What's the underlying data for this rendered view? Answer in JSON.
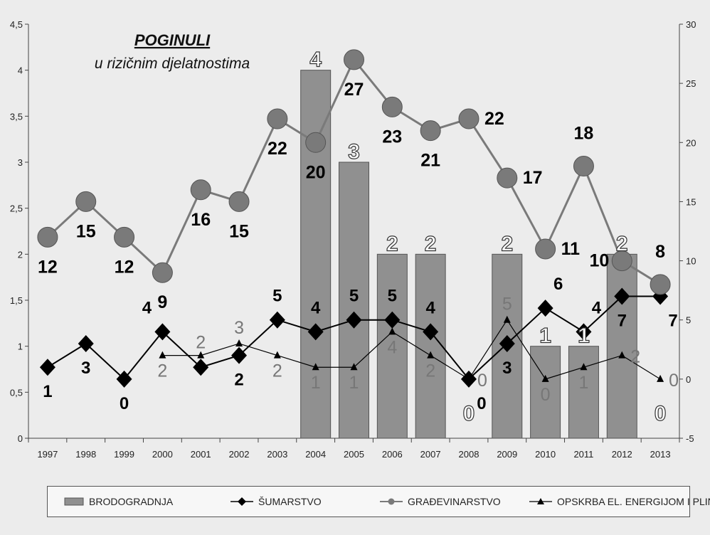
{
  "chart_data": {
    "type": "bar",
    "title": "POGINULI",
    "subtitle": "u rizičnim djelatnostima",
    "categories": [
      "1997",
      "1998",
      "1999",
      "2000",
      "2001",
      "2002",
      "2003",
      "2004",
      "2005",
      "2006",
      "2007",
      "2008",
      "2009",
      "2010",
      "2011",
      "2012",
      "2013"
    ],
    "y_left": {
      "range": [
        0,
        4.5
      ],
      "ticks": [
        "0",
        "0,5",
        "1",
        "1,5",
        "2",
        "2,5",
        "3",
        "3,5",
        "4",
        "4,5"
      ]
    },
    "y_right": {
      "range": [
        -5,
        30
      ],
      "ticks": [
        "-5",
        "0",
        "5",
        "10",
        "15",
        "20",
        "25",
        "30"
      ]
    },
    "grid": false,
    "legend_position": "bottom",
    "series": [
      {
        "name": "BRODOGRADNJA",
        "type": "bar",
        "axis": "left",
        "values": [
          null,
          null,
          null,
          null,
          null,
          null,
          null,
          4,
          3,
          2,
          2,
          0,
          2,
          1,
          1,
          2,
          0
        ],
        "labels": [
          "",
          "",
          "",
          "",
          "",
          "",
          "",
          "4",
          "3",
          "2",
          "2",
          "0",
          "2",
          "1",
          "1",
          "2",
          "0"
        ],
        "color": "#909090"
      },
      {
        "name": "ŠUMARSTVO",
        "type": "line",
        "axis": "right",
        "marker": "diamond",
        "values": [
          1,
          3,
          0,
          4,
          1,
          2,
          5,
          4,
          5,
          5,
          4,
          0,
          3,
          6,
          4,
          7,
          7
        ],
        "labels": [
          "1",
          "3",
          "0",
          "4",
          "",
          "2",
          "5",
          "4",
          "5",
          "5",
          "4",
          "0",
          "3",
          "6",
          "4",
          "7",
          "7"
        ],
        "color": "#000000"
      },
      {
        "name": "GRAĐEVINARSTVO",
        "type": "line",
        "axis": "right",
        "marker": "circle",
        "values": [
          12,
          15,
          12,
          9,
          16,
          15,
          22,
          20,
          27,
          23,
          21,
          22,
          17,
          11,
          18,
          10,
          8
        ],
        "labels": [
          "12",
          "15",
          "12",
          "9",
          "16",
          "15",
          "22",
          "20",
          "27",
          "23",
          "21",
          "22",
          "17",
          "11",
          "18",
          "10",
          "8"
        ],
        "color": "#7a7a7a"
      },
      {
        "name": "OPSKRBA EL. ENERGIJOM I PLINOM",
        "type": "line",
        "axis": "right",
        "marker": "triangle",
        "values": [
          null,
          null,
          null,
          2,
          2,
          3,
          2,
          1,
          1,
          4,
          2,
          0,
          5,
          0,
          1,
          2,
          0
        ],
        "labels": [
          "",
          "",
          "",
          "2",
          "2",
          "3",
          "2",
          "1",
          "1",
          "4",
          "2",
          "0",
          "5",
          "0",
          "1",
          "2",
          "0"
        ],
        "color": "#000000"
      }
    ]
  },
  "legend": {
    "items": [
      "BRODOGRADNJA",
      "ŠUMARSTVO",
      "GRAĐEVINARSTVO",
      "OPSKRBA EL. ENERGIJOM I PLINOM"
    ]
  }
}
